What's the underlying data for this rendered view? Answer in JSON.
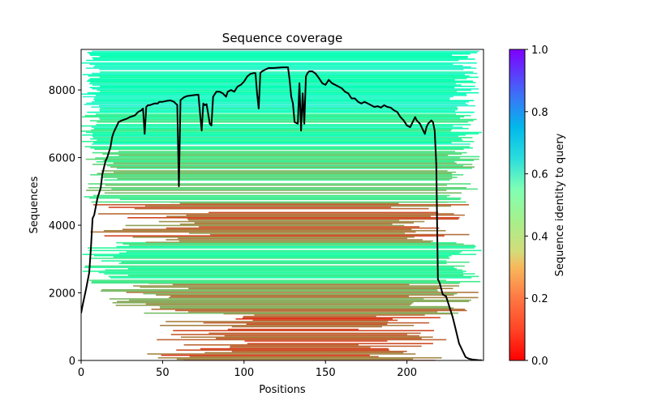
{
  "chart_data": {
    "type": "heatmap",
    "title": "Sequence coverage",
    "xlabel": "Positions",
    "ylabel": "Sequences",
    "xlim": [
      0,
      247
    ],
    "ylim": [
      0,
      9200
    ],
    "xticks": [
      0,
      50,
      100,
      150,
      200
    ],
    "yticks": [
      0,
      2000,
      4000,
      6000,
      8000
    ],
    "xtick_labels": [
      "0",
      "50",
      "100",
      "150",
      "200"
    ],
    "ytick_labels": [
      "0",
      "2000",
      "4000",
      "6000",
      "8000"
    ],
    "grid": false,
    "colorbar": {
      "label": "Sequence identity to query",
      "colormap": "rainbow_r",
      "range": [
        0.0,
        1.0
      ],
      "ticks": [
        0.0,
        0.2,
        0.4,
        0.6,
        0.8,
        1.0
      ],
      "tick_labels": [
        "0.0",
        "0.2",
        "0.4",
        "0.6",
        "0.8",
        "1.0"
      ],
      "colors": [
        "#ff0000",
        "#ff7844",
        "#d4dc7a",
        "#80ffb4",
        "#1996f3",
        "#8000ff"
      ]
    },
    "coverage_line": {
      "name": "coverage",
      "color": "#000000",
      "x": [
        0,
        1,
        3,
        5,
        6,
        7,
        8,
        10,
        12,
        13,
        14,
        15,
        16,
        18,
        19,
        20,
        22,
        23,
        25,
        28,
        30,
        33,
        35,
        37,
        38,
        39,
        40,
        41,
        42,
        45,
        47,
        48,
        50,
        53,
        55,
        57,
        58,
        59,
        60,
        61,
        63,
        65,
        68,
        70,
        72,
        73,
        74,
        75,
        76,
        77,
        78,
        79,
        80,
        81,
        83,
        85,
        87,
        89,
        90,
        92,
        94,
        96,
        98,
        100,
        102,
        104,
        106,
        107,
        108,
        109,
        110,
        111,
        113,
        115,
        118,
        121,
        124,
        127,
        128,
        129,
        130,
        131,
        133,
        134,
        135,
        136,
        137,
        138,
        139,
        140,
        142,
        144,
        146,
        148,
        150,
        152,
        154,
        156,
        158,
        160,
        162,
        164,
        166,
        168,
        170,
        172,
        174,
        176,
        178,
        180,
        182,
        184,
        186,
        188,
        190,
        192,
        194,
        196,
        198,
        200,
        202,
        204,
        205,
        206,
        208,
        210,
        211,
        212,
        213,
        214,
        215,
        216,
        217,
        218,
        219,
        220,
        222,
        224,
        225,
        226,
        227,
        228,
        229,
        230,
        232,
        234,
        236,
        238,
        240,
        242,
        244,
        246
      ],
      "y": [
        1400,
        1650,
        2100,
        2600,
        3300,
        4200,
        4300,
        4800,
        5100,
        5500,
        5700,
        5900,
        6000,
        6300,
        6600,
        6750,
        6950,
        7050,
        7100,
        7150,
        7200,
        7250,
        7350,
        7400,
        7450,
        6700,
        7500,
        7550,
        7550,
        7600,
        7600,
        7650,
        7650,
        7680,
        7690,
        7650,
        7600,
        7560,
        5150,
        7700,
        7780,
        7820,
        7840,
        7850,
        7860,
        7300,
        6800,
        7600,
        7550,
        7580,
        7300,
        7000,
        6950,
        7800,
        7950,
        7950,
        7900,
        7800,
        7950,
        8000,
        7950,
        8100,
        8150,
        8250,
        8400,
        8480,
        8500,
        8500,
        7900,
        7450,
        8500,
        8550,
        8600,
        8650,
        8650,
        8660,
        8670,
        8670,
        8300,
        7800,
        7600,
        7050,
        7000,
        8200,
        6800,
        7900,
        7000,
        8400,
        8500,
        8550,
        8550,
        8480,
        8350,
        8200,
        8150,
        8300,
        8200,
        8150,
        8100,
        8050,
        7950,
        7900,
        7750,
        7750,
        7650,
        7600,
        7650,
        7600,
        7550,
        7500,
        7520,
        7480,
        7550,
        7500,
        7480,
        7400,
        7350,
        7200,
        7100,
        6950,
        6900,
        7100,
        7200,
        7100,
        7000,
        6800,
        6700,
        6900,
        7000,
        7050,
        7100,
        7050,
        6800,
        5800,
        2400,
        2300,
        1950,
        1900,
        1750,
        1600,
        1450,
        1300,
        1100,
        900,
        500,
        300,
        100,
        50,
        30,
        20,
        10,
        5
      ]
    },
    "row_bands": [
      {
        "from": 0,
        "to": 1400,
        "identity": 0.12,
        "x_start_min": 40,
        "x_start_max": 115,
        "x_end_min": 170,
        "x_end_max": 228
      },
      {
        "from": 1400,
        "to": 2300,
        "identity": 0.2,
        "x_start_min": 10,
        "x_start_max": 70,
        "x_end_min": 200,
        "x_end_max": 246
      },
      {
        "from": 2300,
        "to": 3500,
        "identity": 0.4,
        "x_start_min": 0,
        "x_start_max": 30,
        "x_end_min": 224,
        "x_end_max": 246
      },
      {
        "from": 3500,
        "to": 4700,
        "identity": 0.15,
        "x_start_min": 5,
        "x_start_max": 80,
        "x_end_min": 190,
        "x_end_max": 240
      },
      {
        "from": 4700,
        "to": 6200,
        "identity": 0.32,
        "x_start_min": 0,
        "x_start_max": 25,
        "x_end_min": 224,
        "x_end_max": 246
      },
      {
        "from": 6200,
        "to": 7300,
        "identity": 0.42,
        "x_start_min": 0,
        "x_start_max": 12,
        "x_end_min": 226,
        "x_end_max": 246
      },
      {
        "from": 7300,
        "to": 9200,
        "identity": 0.5,
        "x_start_min": 0,
        "x_start_max": 12,
        "x_end_min": 226,
        "x_end_max": 246
      }
    ]
  }
}
